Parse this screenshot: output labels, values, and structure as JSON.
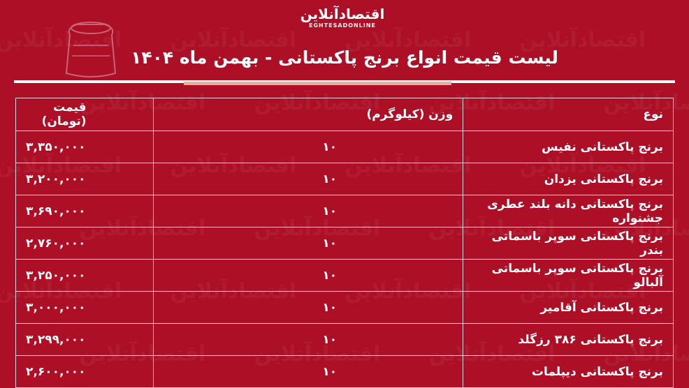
{
  "brand": {
    "logo_fa": "اقتصادآنلاین",
    "logo_en": "EGHTESADONLINE"
  },
  "title": "لیست قیمت انواع برنج پاکستانی - بهمن ماه ۱۴۰۴",
  "colors": {
    "background": "#ad0f27",
    "accent_line": "#e0b49c",
    "text": "#ffffff"
  },
  "table": {
    "headers": {
      "type": "نوع",
      "weight": "وزن (کیلوگرم)",
      "price": "قیمت (تومان)"
    },
    "rows": [
      {
        "type": "برنج پاکستانی نفیس",
        "weight": "۱۰",
        "price": "۳,۳۵۰,۰۰۰"
      },
      {
        "type": "برنج پاکستانی یزدان",
        "weight": "۱۰",
        "price": "۳,۲۰۰,۰۰۰"
      },
      {
        "type": "برنج پاکستانی دانه بلند عطری جشنواره",
        "weight": "۱۰",
        "price": "۳,۶۹۰,۰۰۰"
      },
      {
        "type": "برنج پاکستانی سوپر باسماتی بندر",
        "weight": "۱۰",
        "price": "۲,۷۶۰,۰۰۰"
      },
      {
        "type": "برنج پاکستانی سوپر باسماتی آلبالو",
        "weight": "۱۰",
        "price": "۳,۲۵۰,۰۰۰"
      },
      {
        "type": "برنج پاکستانی آقامیر",
        "weight": "۱۰",
        "price": "۳,۰۰۰,۰۰۰"
      },
      {
        "type": "برنج پاکستانی ۳۸۶ رزگلد",
        "weight": "۱۰",
        "price": "۳,۲۹۹,۰۰۰"
      },
      {
        "type": "برنج پاکستانی دیپلمات",
        "weight": "۱۰",
        "price": "۲,۶۰۰,۰۰۰"
      }
    ]
  }
}
